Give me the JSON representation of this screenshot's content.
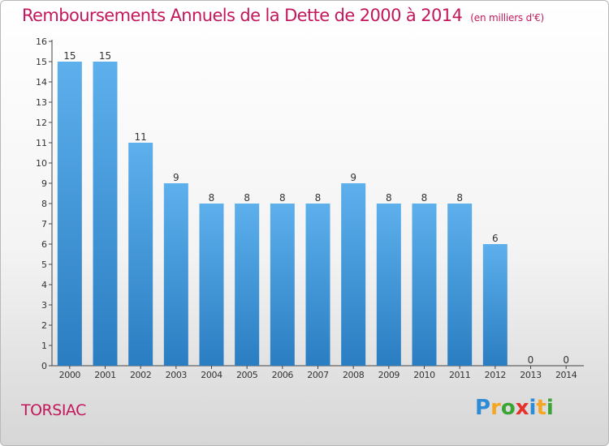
{
  "title": "Remboursements Annuels de la Dette de 2000 à 2014",
  "unit": "(en milliers d'€)",
  "commune": "TORSIAC",
  "logo": {
    "text": "Proxiti",
    "letters": [
      {
        "char": "P",
        "color": "#2e8bd6"
      },
      {
        "char": "r",
        "color": "#f5a623"
      },
      {
        "char": "o",
        "color": "#3aa535"
      },
      {
        "char": "x",
        "color": "#e5322d"
      },
      {
        "char": "i",
        "color": "#2e8bd6"
      },
      {
        "char": "t",
        "color": "#f5a623"
      },
      {
        "char": "i",
        "color": "#3aa535"
      }
    ]
  },
  "colors": {
    "accent": "#c2185b",
    "bar_top": "#5db0ec",
    "bar_bottom": "#2a7dc1",
    "axis": "#444444",
    "text": "#333333"
  },
  "chart_data": {
    "type": "bar",
    "categories": [
      "2000",
      "2001",
      "2002",
      "2003",
      "2004",
      "2005",
      "2006",
      "2007",
      "2008",
      "2009",
      "2010",
      "2011",
      "2012",
      "2013",
      "2014"
    ],
    "values": [
      15,
      15,
      11,
      9,
      8,
      8,
      8,
      8,
      9,
      8,
      8,
      8,
      6,
      0,
      0
    ],
    "ylim": [
      0,
      16
    ],
    "yticks": [
      "0",
      "1",
      "2",
      "3",
      "4",
      "5",
      "6",
      "7",
      "8",
      "9",
      "10",
      "11",
      "12",
      "13",
      "14",
      "15",
      "16"
    ],
    "title": "Remboursements Annuels de la Dette de 2000 à 2014",
    "xlabel": "",
    "ylabel": "",
    "grid": false
  }
}
